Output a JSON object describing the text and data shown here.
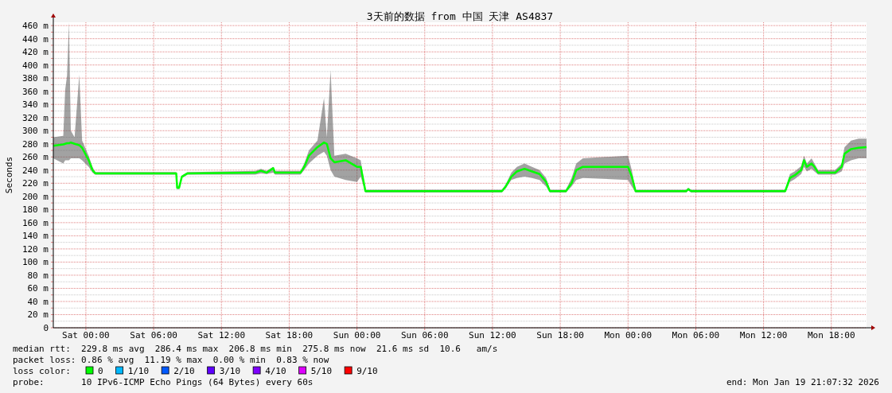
{
  "chart_data": {
    "type": "line",
    "title": "3天前的数据 from 中国 天津 AS4837",
    "ylabel": "Seconds",
    "xlim": [
      "2026-01-16T21:07",
      "2026-01-19T21:07"
    ],
    "xticks": [
      {
        "value": "2026-01-17T00:00",
        "label": "Sat 00:00"
      },
      {
        "value": "2026-01-17T06:00",
        "label": "Sat 06:00"
      },
      {
        "value": "2026-01-17T12:00",
        "label": "Sat 12:00"
      },
      {
        "value": "2026-01-17T18:00",
        "label": "Sat 18:00"
      },
      {
        "value": "2026-01-18T00:00",
        "label": "Sun 00:00"
      },
      {
        "value": "2026-01-18T06:00",
        "label": "Sun 06:00"
      },
      {
        "value": "2026-01-18T12:00",
        "label": "Sun 12:00"
      },
      {
        "value": "2026-01-18T18:00",
        "label": "Sun 18:00"
      },
      {
        "value": "2026-01-19T00:00",
        "label": "Mon 00:00"
      },
      {
        "value": "2026-01-19T06:00",
        "label": "Mon 06:00"
      },
      {
        "value": "2026-01-19T12:00",
        "label": "Mon 12:00"
      },
      {
        "value": "2026-01-19T18:00",
        "label": "Mon 18:00"
      }
    ],
    "ylim": [
      0,
      465
    ],
    "yticks": [
      0,
      {
        "value": 10,
        "label": null
      },
      {
        "value": 20,
        "label": "20 m"
      },
      {
        "value": 30,
        "label": null
      },
      {
        "value": 40,
        "label": "40 m"
      },
      {
        "value": 50,
        "label": null
      },
      {
        "value": 60,
        "label": "60 m"
      },
      {
        "value": 70,
        "label": null
      },
      {
        "value": 80,
        "label": "80 m"
      },
      {
        "value": 90,
        "label": null
      },
      {
        "value": 100,
        "label": "100 m"
      },
      {
        "value": 110,
        "label": null
      },
      {
        "value": 120,
        "label": "120 m"
      },
      {
        "value": 130,
        "label": null
      },
      {
        "value": 140,
        "label": "140 m"
      },
      {
        "value": 150,
        "label": null
      },
      {
        "value": 160,
        "label": "160 m"
      },
      {
        "value": 170,
        "label": null
      },
      {
        "value": 180,
        "label": "180 m"
      },
      {
        "value": 190,
        "label": null
      },
      {
        "value": 200,
        "label": "200 m"
      },
      {
        "value": 210,
        "label": null
      },
      {
        "value": 220,
        "label": "220 m"
      },
      {
        "value": 230,
        "label": null
      },
      {
        "value": 240,
        "label": "240 m"
      },
      {
        "value": 250,
        "label": null
      },
      {
        "value": 260,
        "label": "260 m"
      },
      {
        "value": 270,
        "label": null
      },
      {
        "value": 280,
        "label": "280 m"
      },
      {
        "value": 290,
        "label": null
      },
      {
        "value": 300,
        "label": "300 m"
      },
      {
        "value": 310,
        "label": null
      },
      {
        "value": 320,
        "label": "320 m"
      },
      {
        "value": 330,
        "label": null
      },
      {
        "value": 340,
        "label": "340 m"
      },
      {
        "value": 350,
        "label": null
      },
      {
        "value": 360,
        "label": "360 m"
      },
      {
        "value": 370,
        "label": null
      },
      {
        "value": 380,
        "label": "380 m"
      },
      {
        "value": 390,
        "label": null
      },
      {
        "value": 400,
        "label": "400 m"
      },
      {
        "value": 410,
        "label": null
      },
      {
        "value": 420,
        "label": "420 m"
      },
      {
        "value": 430,
        "label": null
      },
      {
        "value": 440,
        "label": "440 m"
      },
      {
        "value": 450,
        "label": null
      },
      {
        "value": 460,
        "label": "460 m"
      }
    ],
    "grid": true,
    "legend": "bottom",
    "x": [
      "2026-01-16T21:07",
      "2026-01-16T22:00",
      "2026-01-16T22:10",
      "2026-01-16T22:20",
      "2026-01-16T22:30",
      "2026-01-16T22:40",
      "2026-01-16T23:00",
      "2026-01-16T23:25",
      "2026-01-16T23:40",
      "2026-01-17T00:15",
      "2026-01-17T00:35",
      "2026-01-17T00:50",
      "2026-01-17T08:00",
      "2026-01-17T08:05",
      "2026-01-17T08:15",
      "2026-01-17T08:30",
      "2026-01-17T09:00",
      "2026-01-17T15:00",
      "2026-01-17T15:30",
      "2026-01-17T16:00",
      "2026-01-17T16:35",
      "2026-01-17T16:45",
      "2026-01-17T19:00",
      "2026-01-17T19:20",
      "2026-01-17T19:45",
      "2026-01-17T20:30",
      "2026-01-17T21:05",
      "2026-01-17T21:20",
      "2026-01-17T21:40",
      "2026-01-17T22:00",
      "2026-01-17T23:00",
      "2026-01-18T00:00",
      "2026-01-18T00:20",
      "2026-01-18T00:45",
      "2026-01-18T12:50",
      "2026-01-18T13:10",
      "2026-01-18T13:40",
      "2026-01-18T14:10",
      "2026-01-18T14:50",
      "2026-01-18T15:30",
      "2026-01-18T16:10",
      "2026-01-18T16:45",
      "2026-01-18T17:05",
      "2026-01-18T18:30",
      "2026-01-18T19:00",
      "2026-01-18T19:25",
      "2026-01-18T20:00",
      "2026-01-19T00:00",
      "2026-01-19T00:20",
      "2026-01-19T00:40",
      "2026-01-19T05:10",
      "2026-01-19T05:20",
      "2026-01-19T05:35",
      "2026-01-19T13:55",
      "2026-01-19T14:20",
      "2026-01-19T14:45",
      "2026-01-19T15:20",
      "2026-01-19T15:35",
      "2026-01-19T15:50",
      "2026-01-19T16:15",
      "2026-01-19T16:30",
      "2026-01-19T16:50",
      "2026-01-19T18:20",
      "2026-01-19T18:55",
      "2026-01-19T19:10",
      "2026-01-19T19:45",
      "2026-01-19T20:25",
      "2026-01-19T21:07"
    ],
    "series": [
      {
        "name": "0",
        "color": "#00ff00",
        "values": [
          277,
          279,
          280,
          281,
          281,
          282,
          280,
          278,
          274,
          255,
          240,
          235,
          235,
          213,
          213,
          230,
          235,
          236,
          239,
          236,
          243,
          236,
          236,
          245,
          262,
          275,
          282,
          280,
          258,
          252,
          255,
          245,
          245,
          208,
          208,
          215,
          230,
          238,
          242,
          238,
          234,
          222,
          208,
          208,
          220,
          240,
          245,
          245,
          230,
          208,
          208,
          211,
          208,
          208,
          228,
          232,
          240,
          255,
          245,
          250,
          245,
          236,
          236,
          245,
          265,
          272,
          274,
          275
        ],
        "lower": [
          258,
          250,
          255,
          255,
          255,
          258,
          258,
          258,
          255,
          245,
          236,
          233,
          233,
          211,
          211,
          228,
          233,
          233,
          235,
          234,
          236,
          233,
          233,
          240,
          250,
          262,
          268,
          262,
          240,
          230,
          225,
          222,
          230,
          206,
          206,
          212,
          225,
          228,
          230,
          228,
          225,
          215,
          206,
          206,
          215,
          225,
          228,
          225,
          215,
          206,
          206,
          209,
          206,
          206,
          222,
          226,
          234,
          245,
          238,
          242,
          238,
          233,
          233,
          238,
          250,
          255,
          258,
          258
        ],
        "upper": [
          290,
          292,
          362,
          384,
          465,
          300,
          290,
          385,
          285,
          262,
          245,
          237,
          237,
          215,
          215,
          232,
          237,
          239,
          242,
          239,
          245,
          239,
          239,
          250,
          270,
          285,
          350,
          290,
          392,
          262,
          265,
          258,
          255,
          210,
          210,
          218,
          236,
          245,
          250,
          245,
          240,
          228,
          210,
          210,
          228,
          250,
          258,
          262,
          240,
          210,
          210,
          213,
          210,
          210,
          234,
          238,
          246,
          262,
          250,
          258,
          250,
          240,
          240,
          250,
          275,
          285,
          288,
          288
        ]
      },
      {
        "name": "1/10",
        "color": "#00b8ff",
        "values": [
          null,
          null,
          null,
          null,
          null,
          null,
          null,
          null,
          null,
          null,
          null,
          null,
          null,
          null,
          null,
          null,
          null,
          null,
          null,
          null,
          null,
          null,
          null,
          null,
          null,
          null,
          null,
          null,
          null,
          null,
          null,
          null,
          null,
          null,
          null,
          null,
          null,
          null,
          null,
          null,
          null,
          null,
          null,
          null,
          null,
          null,
          null,
          null,
          null,
          null,
          null,
          null,
          null,
          null,
          null,
          null,
          null,
          null,
          null,
          null,
          null,
          null,
          null,
          null,
          null,
          null,
          null,
          null
        ]
      },
      {
        "name": "2/10",
        "color": "#0059ff",
        "values": [
          null,
          null,
          null,
          null,
          null,
          null,
          null,
          null,
          null,
          null,
          null,
          null,
          null,
          null,
          null,
          null,
          null,
          null,
          null,
          null,
          null,
          null,
          null,
          null,
          null,
          null,
          null,
          null,
          null,
          null,
          null,
          null,
          null,
          null,
          null,
          null,
          null,
          null,
          null,
          null,
          null,
          null,
          null,
          null,
          null,
          null,
          null,
          null,
          null,
          null,
          null,
          null,
          null,
          null,
          null,
          null,
          null,
          null,
          null,
          null,
          null,
          null,
          null,
          null,
          null,
          null,
          null,
          null
        ]
      },
      {
        "name": "3/10",
        "color": "#5e00ff",
        "values": [
          null,
          null,
          null,
          null,
          null,
          null,
          null,
          null,
          null,
          null,
          null,
          null,
          null,
          null,
          null,
          null,
          null,
          null,
          null,
          null,
          null,
          null,
          null,
          null,
          null,
          null,
          null,
          null,
          null,
          null,
          null,
          null,
          null,
          null,
          null,
          null,
          null,
          null,
          null,
          null,
          null,
          null,
          null,
          null,
          null,
          null,
          null,
          null,
          null,
          null,
          null,
          null,
          null,
          null,
          null,
          null,
          null,
          null,
          null,
          null,
          null,
          null,
          null,
          null,
          null,
          null,
          null,
          null
        ]
      },
      {
        "name": "4/10",
        "color": "#7e00ff",
        "values": [
          null,
          null,
          null,
          null,
          null,
          null,
          null,
          null,
          null,
          null,
          null,
          null,
          null,
          null,
          null,
          null,
          null,
          null,
          null,
          null,
          null,
          null,
          null,
          null,
          null,
          null,
          null,
          null,
          null,
          null,
          null,
          null,
          null,
          null,
          null,
          null,
          null,
          null,
          null,
          null,
          null,
          null,
          null,
          null,
          null,
          null,
          null,
          null,
          null,
          null,
          null,
          null,
          null,
          null,
          null,
          null,
          null,
          null,
          null,
          null,
          null,
          null,
          null,
          null,
          null,
          null,
          null,
          null
        ]
      },
      {
        "name": "5/10",
        "color": "#dd00ff",
        "values": [
          null,
          null,
          null,
          null,
          null,
          null,
          null,
          null,
          null,
          null,
          null,
          null,
          null,
          null,
          null,
          null,
          null,
          null,
          null,
          null,
          null,
          null,
          null,
          null,
          null,
          null,
          null,
          null,
          null,
          null,
          null,
          null,
          null,
          null,
          null,
          null,
          null,
          null,
          null,
          null,
          null,
          null,
          null,
          null,
          null,
          null,
          null,
          null,
          null,
          null,
          null,
          null,
          null,
          null,
          null,
          null,
          null,
          null,
          null,
          null,
          null,
          null,
          null,
          null,
          null,
          null,
          null,
          null
        ]
      },
      {
        "name": "9/10",
        "color": "#ff0000",
        "values": [
          null,
          null,
          null,
          null,
          null,
          null,
          null,
          null,
          null,
          null,
          null,
          null,
          null,
          null,
          null,
          null,
          null,
          null,
          null,
          null,
          null,
          null,
          null,
          null,
          null,
          null,
          null,
          null,
          null,
          null,
          null,
          null,
          null,
          null,
          null,
          null,
          null,
          null,
          null,
          null,
          null,
          null,
          null,
          null,
          null,
          null,
          null,
          null,
          null,
          null,
          null,
          null,
          null,
          null,
          null,
          null,
          null,
          null,
          null,
          null,
          null,
          null,
          null,
          null,
          null,
          null,
          null,
          null
        ]
      }
    ],
    "legend_title": "loss color:",
    "annotations": [
      "median rtt:  229.8 ms avg  286.4 ms max  206.8 ms min  275.8 ms now  21.6 ms sd  10.6   am/s",
      "packet loss: 0.86 % avg  11.19 % max  0.00 % min  0.83 % now",
      "probe:       10 IPv6-ICMP Echo Pings (64 Bytes) every 60s",
      "end: Mon Jan 19 21:07:32 2026"
    ]
  }
}
